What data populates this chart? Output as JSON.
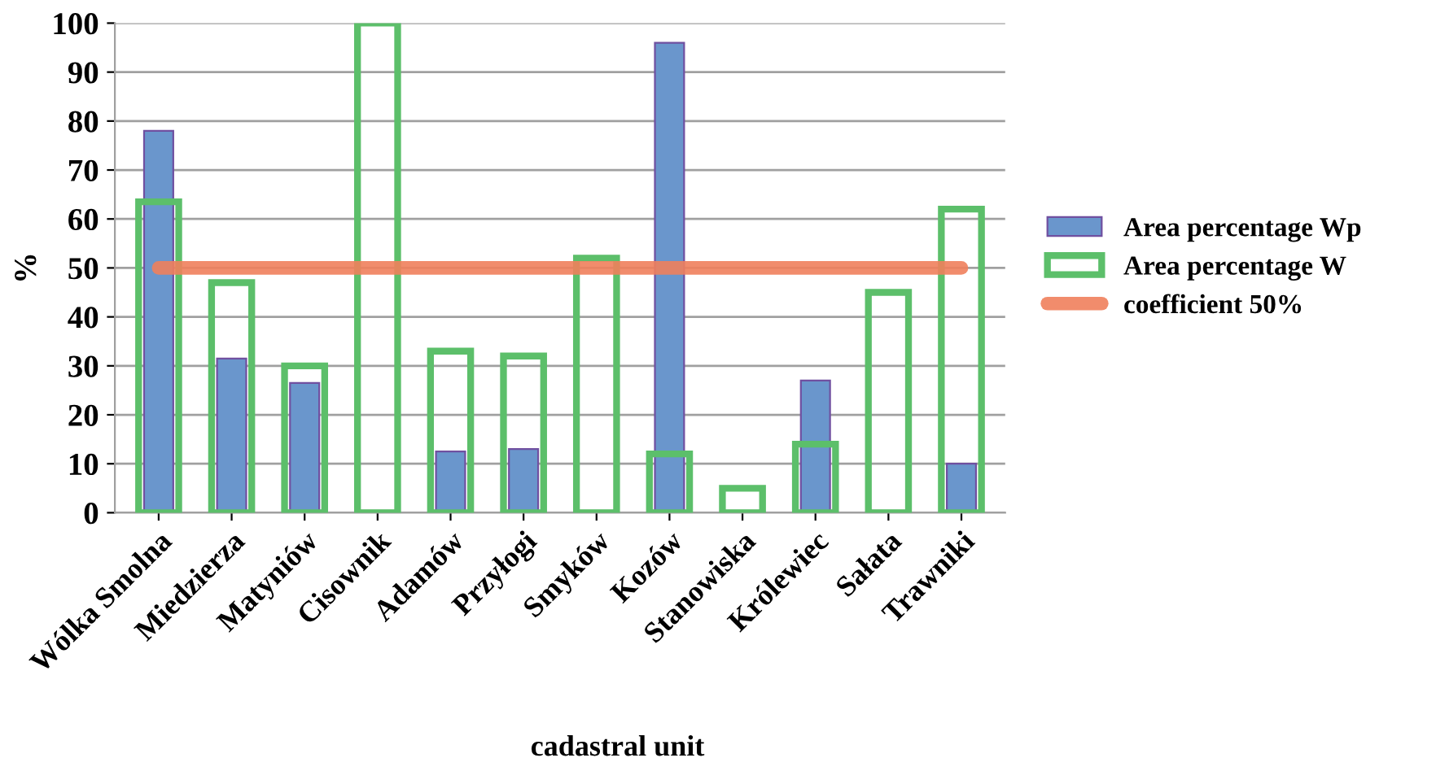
{
  "chart_data": {
    "type": "bar",
    "xlabel": "cadastral unit",
    "ylabel": "%",
    "categories": [
      "Wólka Smolna",
      "Miedzierza",
      "Matyniów",
      "Cisownik",
      "Adamów",
      "Przyłogi",
      "Smyków",
      "Kozów",
      "Stanowiska",
      "Królewiec",
      "Sałata",
      "Trawniki"
    ],
    "series": [
      {
        "name": "Area percentage Wp",
        "color": "#6a96cc",
        "values": [
          78,
          31.5,
          26.5,
          0,
          12.5,
          13,
          0,
          96,
          0,
          27,
          0,
          10
        ]
      },
      {
        "name": "Area percentage W",
        "color": "#5cbf6a",
        "values": [
          63.5,
          47,
          30,
          100,
          33,
          32,
          52,
          12,
          5,
          14,
          45,
          62
        ]
      },
      {
        "name": "coefficient 50%",
        "type": "line",
        "color": "#f0805c",
        "values": [
          50,
          50,
          50,
          50,
          50,
          50,
          50,
          50,
          50,
          50,
          50,
          50
        ]
      }
    ],
    "ylim": [
      0,
      100
    ],
    "yticks": [
      0,
      10,
      20,
      30,
      40,
      50,
      60,
      70,
      80,
      90,
      100
    ],
    "grid": "y",
    "legend": "right"
  }
}
